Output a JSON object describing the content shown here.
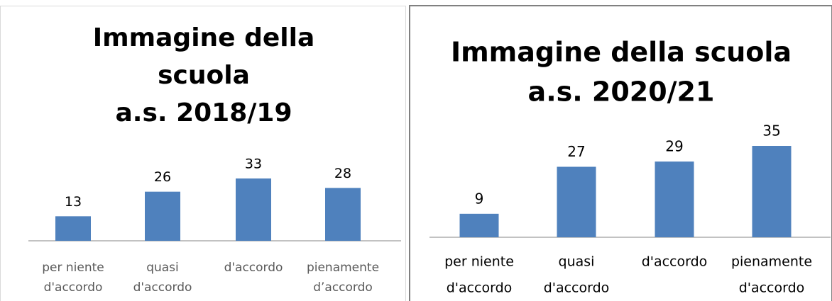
{
  "chart_data": [
    {
      "type": "bar",
      "title": [
        "Immagine della",
        "scuola",
        "a.s. 2018/19"
      ],
      "categories": [
        [
          "per niente",
          "d'accordo"
        ],
        [
          "quasi",
          "d'accordo"
        ],
        [
          "d'accordo"
        ],
        [
          "pienamente",
          "d’accordo"
        ]
      ],
      "values": [
        13,
        26,
        33,
        28
      ],
      "color": "#4f81bd"
    },
    {
      "type": "bar",
      "title": [
        "Immagine della scuola",
        "a.s. 2020/21"
      ],
      "categories": [
        [
          "per niente",
          "d'accordo"
        ],
        [
          "quasi",
          "d'accordo"
        ],
        [
          "d'accordo"
        ],
        [
          "pienamente",
          "d'accordo"
        ]
      ],
      "values": [
        9,
        27,
        29,
        35
      ],
      "color": "#4f81bd"
    }
  ]
}
